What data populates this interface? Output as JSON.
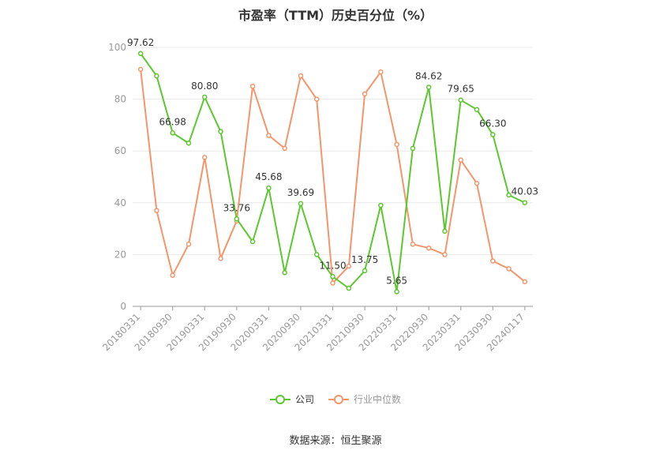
{
  "chart_data": {
    "type": "line",
    "title": "市盈率（TTM）历史百分位（%）",
    "xlabel": "",
    "ylabel": "",
    "ylim": [
      0,
      100
    ],
    "yticks": [
      0,
      20,
      40,
      60,
      80,
      100
    ],
    "grid": true,
    "legend_position": "bottom",
    "x": [
      "20180331",
      "20180630",
      "20180930",
      "20181231",
      "20190331",
      "20190630",
      "20190930",
      "20191231",
      "20200331",
      "20200630",
      "20200930",
      "20201231",
      "20210331",
      "20210630",
      "20210930",
      "20211231",
      "20220331",
      "20220630",
      "20220930",
      "20221231",
      "20230331",
      "20230630",
      "20230930",
      "20231231",
      "20240117"
    ],
    "xtick_labels": [
      "20180331",
      "20180930",
      "20190331",
      "20190930",
      "20200331",
      "20200930",
      "20210331",
      "20210930",
      "20220331",
      "20220930",
      "20230331",
      "20230930",
      "20240117"
    ],
    "series": [
      {
        "name": "公司",
        "color": "#5cc72e",
        "values": [
          97.62,
          89,
          66.98,
          63,
          80.8,
          67.5,
          33.76,
          25,
          45.68,
          13,
          39.69,
          20,
          11.5,
          7,
          13.75,
          39,
          5.65,
          61,
          84.62,
          29,
          79.65,
          76,
          66.3,
          43,
          40.03
        ],
        "labeled_values": [
          "97.62",
          null,
          "66.98",
          null,
          "80.80",
          null,
          "33.76",
          null,
          "45.68",
          null,
          "39.69",
          null,
          "11.50",
          null,
          "13.75",
          null,
          "5.65",
          null,
          "84.62",
          null,
          "79.65",
          null,
          "66.30",
          null,
          "40.03"
        ]
      },
      {
        "name": "行业中位数",
        "color": "#f4956a",
        "values": [
          91.5,
          37,
          12,
          24,
          57.5,
          18.5,
          33,
          85,
          66,
          61,
          89,
          80,
          9,
          15.5,
          82,
          90.5,
          62.5,
          24,
          22.5,
          20,
          56.5,
          47.5,
          17.5,
          14.5,
          9.5
        ]
      }
    ]
  },
  "source_note": "数据来源：恒生聚源"
}
